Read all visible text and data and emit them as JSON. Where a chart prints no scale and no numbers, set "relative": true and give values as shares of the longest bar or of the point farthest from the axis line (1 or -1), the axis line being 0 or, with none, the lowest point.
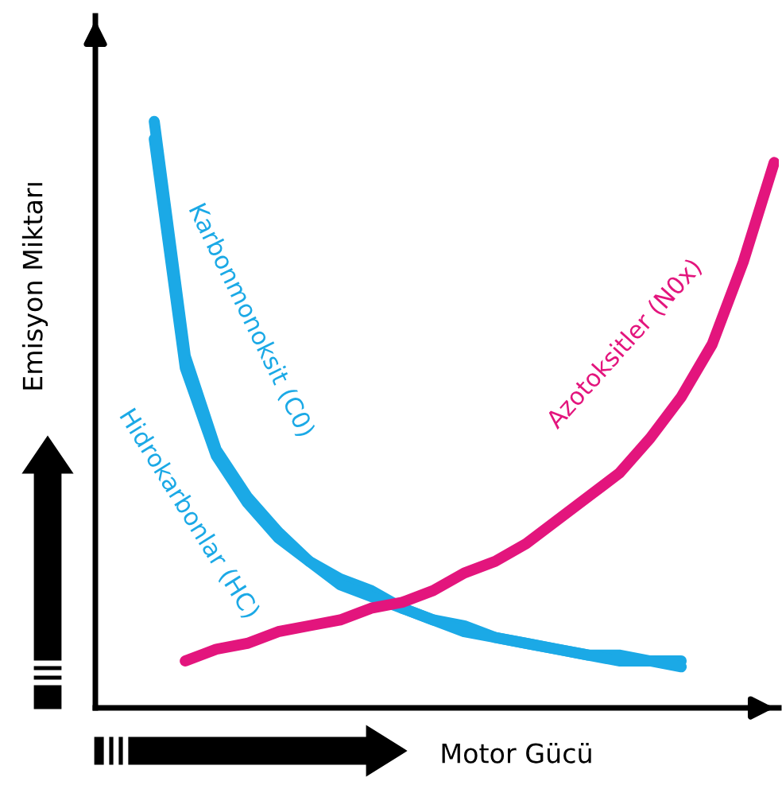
{
  "chart_data": {
    "type": "line",
    "relative": true,
    "xlabel": "Motor Gücü",
    "ylabel": "Emisyon Miktarı",
    "legend": false,
    "marker": "none",
    "line_style": "solid",
    "categories": [
      null,
      null,
      null,
      null,
      null,
      null,
      null,
      null,
      null,
      null,
      null,
      null,
      null,
      null,
      null,
      null,
      null,
      null,
      null,
      null,
      null
    ],
    "series": [
      {
        "name": "Karbonmonoksit (C0)",
        "color": "#1ba9e6",
        "values": [
          1,
          0.6,
          0.44,
          0.36,
          0.3,
          0.25,
          0.22,
          0.2,
          0.17,
          0.15,
          0.14,
          0.12,
          0.11,
          0.1,
          0.09,
          0.09,
          0.08,
          0.08,
          null,
          null,
          null
        ]
      },
      {
        "name": "Hidrokarbonlar (HC)",
        "color": "#1ba9e6",
        "values": [
          0.97,
          0.58,
          0.43,
          0.35,
          0.29,
          0.25,
          0.21,
          0.19,
          0.17,
          0.15,
          0.13,
          0.12,
          0.11,
          0.1,
          0.09,
          0.08,
          0.08,
          0.07,
          null,
          null,
          null
        ]
      },
      {
        "name": "Azotoksitler (N0x)",
        "color": "#e3157d",
        "values": [
          null,
          0.08,
          0.1,
          0.11,
          0.13,
          0.14,
          0.15,
          0.17,
          0.18,
          0.2,
          0.23,
          0.25,
          0.28,
          0.32,
          0.36,
          0.4,
          0.46,
          0.53,
          0.62,
          0.76,
          0.93
        ]
      }
    ]
  }
}
